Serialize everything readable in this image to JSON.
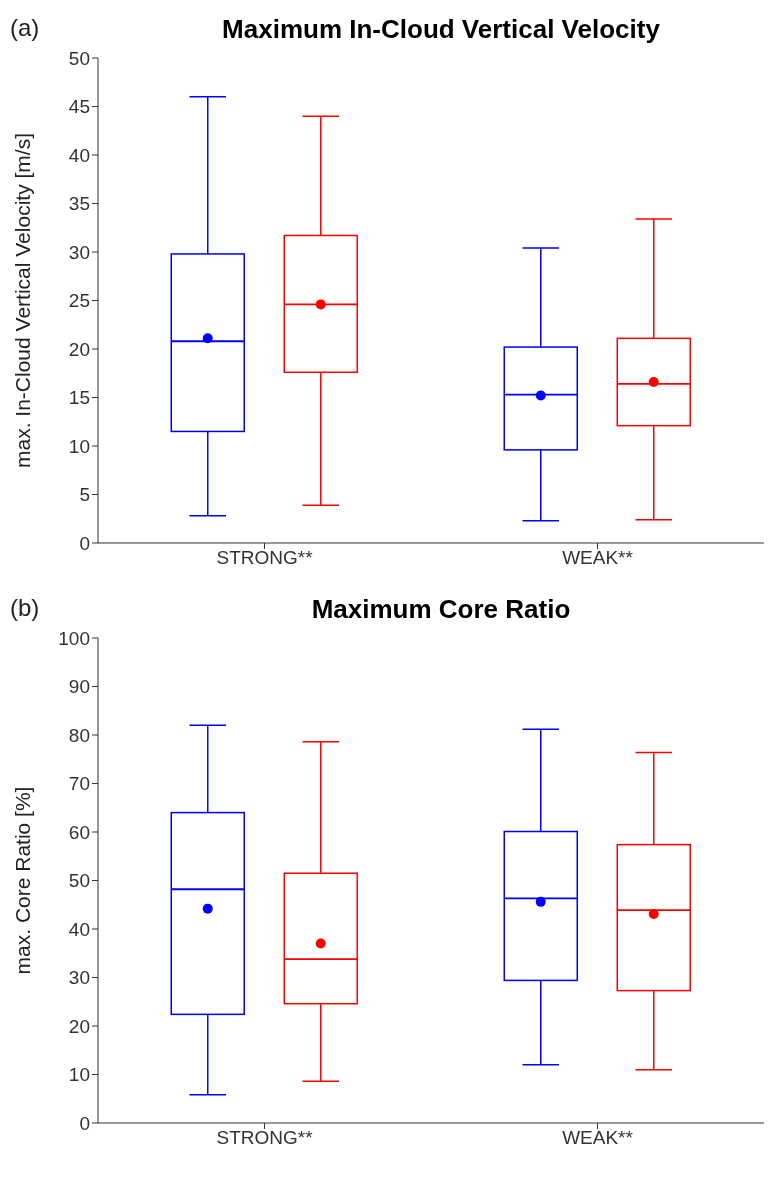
{
  "chart_data": [
    {
      "type": "box",
      "title": "Maximum In-Cloud Vertical Velocity",
      "ylabel": "max. In-Cloud Vertical Velocity [m/s]",
      "annotations": [
        "(a)"
      ],
      "categories": [
        "STRONG**",
        "WEAK**"
      ],
      "ylim": [
        0,
        50
      ],
      "yticks": [
        0,
        5,
        10,
        15,
        20,
        25,
        30,
        35,
        40,
        45,
        50
      ],
      "grid": false,
      "legend": false,
      "marker": "circle",
      "series": [
        {
          "color": "#0000ff",
          "boxes": [
            {
              "low": 2.8,
              "q1": 11.5,
              "median": 20.8,
              "q3": 29.8,
              "high": 46,
              "mean": 21.1
            },
            {
              "low": 2.3,
              "q1": 9.6,
              "median": 15.3,
              "q3": 20.2,
              "high": 30.4,
              "mean": 15.2
            }
          ]
        },
        {
          "color": "#ff0000",
          "boxes": [
            {
              "low": 3.9,
              "q1": 17.6,
              "median": 24.6,
              "q3": 31.7,
              "high": 44,
              "mean": 24.6
            },
            {
              "low": 2.4,
              "q1": 12.1,
              "median": 16.4,
              "q3": 21.1,
              "high": 33.4,
              "mean": 16.6
            }
          ]
        }
      ]
    },
    {
      "type": "box",
      "title": "Maximum Core Ratio",
      "ylabel": "max. Core Ratio [%]",
      "annotations": [
        "(b)"
      ],
      "categories": [
        "STRONG**",
        "WEAK**"
      ],
      "ylim": [
        0,
        100
      ],
      "yticks": [
        0,
        10,
        20,
        30,
        40,
        50,
        60,
        70,
        80,
        90,
        100
      ],
      "grid": false,
      "legend": false,
      "marker": "circle",
      "series": [
        {
          "color": "#0000ff",
          "boxes": [
            {
              "low": 5.8,
              "q1": 22.4,
              "median": 48.2,
              "q3": 64,
              "high": 82,
              "mean": 44.2
            },
            {
              "low": 12,
              "q1": 29.4,
              "median": 46.3,
              "q3": 60.1,
              "high": 81.2,
              "mean": 45.6
            }
          ]
        },
        {
          "color": "#ff0000",
          "boxes": [
            {
              "low": 8.6,
              "q1": 24.6,
              "median": 33.8,
              "q3": 51.5,
              "high": 78.6,
              "mean": 37
            },
            {
              "low": 11,
              "q1": 27.3,
              "median": 43.9,
              "q3": 57.4,
              "high": 76.4,
              "mean": 43.1
            }
          ]
        }
      ]
    }
  ]
}
